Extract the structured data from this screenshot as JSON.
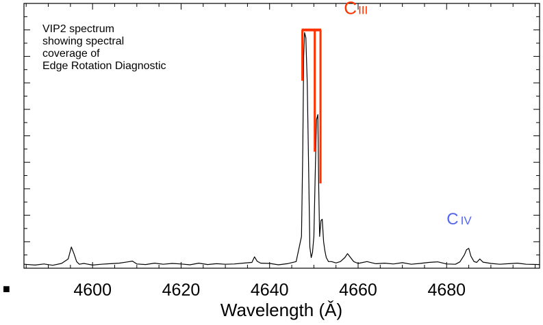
{
  "chart_data": {
    "type": "line",
    "xlabel": "Wavelength (Ǎ)",
    "xlim": [
      4584.5,
      4701
    ],
    "ylim": [
      0,
      100
    ],
    "x_ticks": [
      4600,
      4620,
      4640,
      4660,
      4680
    ],
    "x_tick_labels": [
      "4600",
      "4620",
      "4640",
      "4660",
      "4680"
    ],
    "y_ticks": [
      10,
      20,
      30,
      40,
      50,
      60,
      70,
      80,
      90
    ],
    "y_tick_labels": [],
    "grid": false,
    "series": [
      {
        "color": "#000000",
        "x": [
          4584.5,
          4587,
          4589,
          4591,
          4593,
          4594.5,
          4595.2,
          4595.8,
          4596.4,
          4597,
          4598,
          4600,
          4602,
          4604,
          4606,
          4608,
          4609,
          4610,
          4612,
          4614,
          4616,
          4618,
          4620,
          4622,
          4624,
          4626,
          4628,
          4630,
          4632,
          4634,
          4636,
          4636.6,
          4637.2,
          4638,
          4640,
          4642,
          4644,
          4646,
          4647.2,
          4647.5,
          4647.7,
          4647.9,
          4648.2,
          4648.5,
          4648.8,
          4649.1,
          4649.4,
          4649.7,
          4650.0,
          4650.3,
          4650.6,
          4650.9,
          4651.1,
          4651.3,
          4651.6,
          4651.9,
          4652.2,
          4652.5,
          4652.8,
          4653.3,
          4654,
          4655,
          4656,
          4657,
          4657.6,
          4658.3,
          4659,
          4660,
          4662,
          4664,
          4666,
          4668,
          4670,
          4672,
          4674,
          4676,
          4678,
          4680,
          4682,
          4683,
          4684,
          4684.5,
          4685,
          4685.5,
          4686.2,
          4686.8,
          4687.5,
          4688.2,
          4690,
          4692,
          4694,
          4696,
          4698,
          4701
        ],
        "y": [
          1.5,
          1.2,
          1.6,
          1.1,
          1.8,
          3.5,
          8.0,
          5.5,
          2.5,
          1.5,
          1.8,
          1.2,
          1.5,
          1.7,
          1.9,
          2.4,
          2.7,
          1.6,
          1.4,
          1.9,
          1.5,
          1.8,
          1.6,
          1.3,
          1.9,
          1.4,
          1.7,
          1.5,
          1.6,
          1.9,
          2.2,
          4.3,
          2.6,
          1.9,
          1.8,
          1.3,
          1.7,
          2.5,
          12,
          45,
          80,
          89,
          87,
          70,
          40,
          8,
          4,
          6,
          12,
          35,
          56,
          58,
          30,
          12,
          18,
          18.5,
          10,
          6.5,
          4,
          2.5,
          2.5,
          2.0,
          2.5,
          4.0,
          5.5,
          4.0,
          2.5,
          1.8,
          2.5,
          1.7,
          1.9,
          1.6,
          2.1,
          1.5,
          1.8,
          2.2,
          2.4,
          1.6,
          1.5,
          2.4,
          5.0,
          7.0,
          7.5,
          4.5,
          2.5,
          2.2,
          3.5,
          2.3,
          1.8,
          1.5,
          1.7,
          1.9,
          1.5,
          1.4
        ]
      }
    ],
    "annotations": {
      "description_lines": [
        "VIP2 spectrum",
        "showing spectral",
        "coverage of",
        "Edge Rotation Diagnostic"
      ],
      "c3": {
        "prefix": "C",
        "suffix": "III",
        "color": "#ff3300",
        "line_wavelengths": [
          4647.4,
          4650.2,
          4651.5
        ],
        "line_drops": [
          0.48,
          1.15,
          1.45
        ],
        "label_x": 4656.8,
        "label_y": 96
      },
      "c4": {
        "prefix": "C",
        "suffix": "IV",
        "color": "#5566ee",
        "label_x": 4680,
        "label_y": 16.5
      }
    },
    "corner_marker": "■"
  }
}
